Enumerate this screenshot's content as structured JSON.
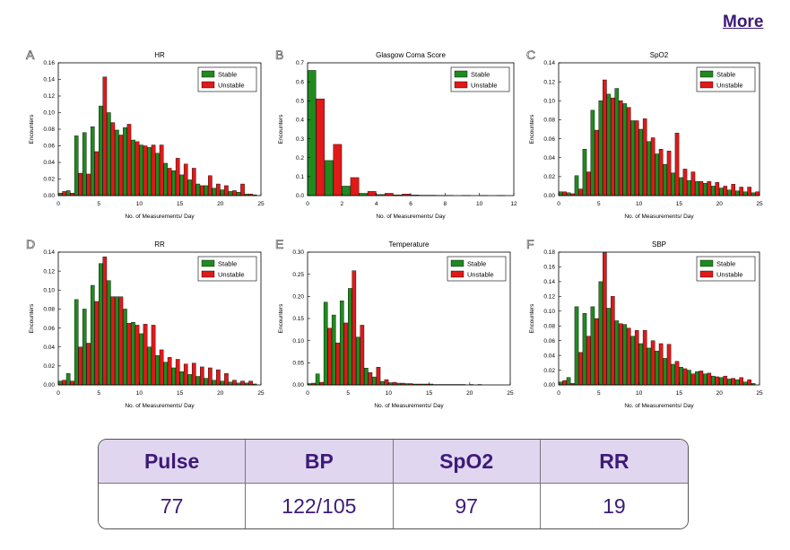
{
  "nav": {
    "more_label": "More"
  },
  "colors": {
    "stable": "#1f8a1f",
    "unstable": "#e01919",
    "accent": "#3d1a78",
    "header_bg": "#e1d6ef"
  },
  "legend": {
    "stable": "Stable",
    "unstable": "Unstable"
  },
  "chart_data": [
    {
      "type": "bar",
      "panel": "A",
      "title": "HR",
      "xlabel": "No. of Measurements/ Day",
      "ylabel": "Encounters",
      "xlim": [
        0,
        25
      ],
      "ylim": [
        0,
        0.16
      ],
      "xticks": [
        "0",
        "5",
        "10",
        "15",
        "20",
        "25"
      ],
      "yticks": [
        "0.00",
        "0.02",
        "0.04",
        "0.06",
        "0.08",
        "0.10",
        "0.12",
        "0.14",
        "0.16"
      ],
      "x": [
        0,
        1,
        2,
        3,
        4,
        5,
        6,
        7,
        8,
        9,
        10,
        11,
        12,
        13,
        14,
        15,
        16,
        17,
        18,
        19,
        20,
        21,
        22,
        23,
        24
      ],
      "series": [
        {
          "name": "Stable",
          "values": [
            0.003,
            0.006,
            0.072,
            0.076,
            0.083,
            0.108,
            0.1,
            0.079,
            0.082,
            0.067,
            0.061,
            0.058,
            0.051,
            0.039,
            0.03,
            0.025,
            0.019,
            0.014,
            0.012,
            0.009,
            0.007,
            0.005,
            0.004,
            0.002,
            0.001
          ]
        },
        {
          "name": "Unstable",
          "values": [
            0.005,
            0.003,
            0.027,
            0.026,
            0.053,
            0.143,
            0.088,
            0.073,
            0.086,
            0.065,
            0.06,
            0.061,
            0.061,
            0.033,
            0.045,
            0.038,
            0.033,
            0.012,
            0.024,
            0.014,
            0.012,
            0.006,
            0.014,
            0.002,
            0.0
          ]
        }
      ]
    },
    {
      "type": "bar",
      "panel": "B",
      "title": "Glasgow Coma Score",
      "xlabel": "No. of Measurements/ Day",
      "ylabel": "Encounters",
      "xlim": [
        0,
        12
      ],
      "ylim": [
        0,
        0.7
      ],
      "xticks": [
        "0",
        "2",
        "4",
        "6",
        "8",
        "10",
        "12"
      ],
      "yticks": [
        "0.0",
        "0.1",
        "0.2",
        "0.3",
        "0.4",
        "0.5",
        "0.6",
        "0.7"
      ],
      "x": [
        0,
        1,
        2,
        3,
        4,
        5,
        6,
        7,
        8,
        9,
        10,
        11
      ],
      "series": [
        {
          "name": "Stable",
          "values": [
            0.66,
            0.185,
            0.05,
            0.012,
            0.006,
            0.004,
            0.003,
            0.002,
            0.001,
            0.001,
            0.001,
            0.001
          ]
        },
        {
          "name": "Unstable",
          "values": [
            0.51,
            0.27,
            0.095,
            0.022,
            0.012,
            0.008,
            0.002,
            0.001,
            0.0,
            0.0,
            0.0,
            0.0
          ]
        }
      ]
    },
    {
      "type": "bar",
      "panel": "C",
      "title": "SpO2",
      "xlabel": "No. of Measurements/ Day",
      "ylabel": "Encounters",
      "xlim": [
        0,
        25
      ],
      "ylim": [
        0,
        0.14
      ],
      "xticks": [
        "0",
        "5",
        "10",
        "15",
        "20",
        "25"
      ],
      "yticks": [
        "0.00",
        "0.02",
        "0.04",
        "0.06",
        "0.08",
        "0.10",
        "0.12",
        "0.14"
      ],
      "x": [
        0,
        1,
        2,
        3,
        4,
        5,
        6,
        7,
        8,
        9,
        10,
        11,
        12,
        13,
        14,
        15,
        16,
        17,
        18,
        19,
        20,
        21,
        22,
        23,
        24
      ],
      "series": [
        {
          "name": "Stable",
          "values": [
            0.004,
            0.003,
            0.021,
            0.049,
            0.09,
            0.1,
            0.107,
            0.113,
            0.097,
            0.079,
            0.07,
            0.057,
            0.044,
            0.033,
            0.024,
            0.019,
            0.016,
            0.015,
            0.013,
            0.01,
            0.008,
            0.006,
            0.005,
            0.004,
            0.003
          ]
        },
        {
          "name": "Unstable",
          "values": [
            0.004,
            0.002,
            0.007,
            0.025,
            0.069,
            0.122,
            0.103,
            0.1,
            0.093,
            0.079,
            0.081,
            0.061,
            0.049,
            0.047,
            0.066,
            0.028,
            0.025,
            0.015,
            0.015,
            0.014,
            0.01,
            0.012,
            0.009,
            0.009,
            0.004
          ]
        }
      ]
    },
    {
      "type": "bar",
      "panel": "D",
      "title": "RR",
      "xlabel": "No. of Measurements/ Day",
      "ylabel": "Encounters",
      "xlim": [
        0,
        25
      ],
      "ylim": [
        0,
        0.14
      ],
      "xticks": [
        "0",
        "5",
        "10",
        "15",
        "20",
        "25"
      ],
      "yticks": [
        "0.00",
        "0.02",
        "0.04",
        "0.06",
        "0.08",
        "0.10",
        "0.12",
        "0.14"
      ],
      "x": [
        0,
        1,
        2,
        3,
        4,
        5,
        6,
        7,
        8,
        9,
        10,
        11,
        12,
        13,
        14,
        15,
        16,
        17,
        18,
        19,
        20,
        21,
        22,
        23,
        24
      ],
      "series": [
        {
          "name": "Stable",
          "values": [
            0.004,
            0.012,
            0.09,
            0.08,
            0.105,
            0.128,
            0.11,
            0.093,
            0.08,
            0.066,
            0.054,
            0.04,
            0.031,
            0.024,
            0.018,
            0.014,
            0.011,
            0.009,
            0.007,
            0.005,
            0.004,
            0.003,
            0.002,
            0.002,
            0.001
          ]
        },
        {
          "name": "Unstable",
          "values": [
            0.005,
            0.004,
            0.04,
            0.044,
            0.088,
            0.135,
            0.093,
            0.093,
            0.065,
            0.063,
            0.064,
            0.063,
            0.037,
            0.029,
            0.027,
            0.022,
            0.023,
            0.019,
            0.018,
            0.016,
            0.012,
            0.005,
            0.004,
            0.004,
            0.0
          ]
        }
      ]
    },
    {
      "type": "bar",
      "panel": "E",
      "title": "Temperature",
      "xlabel": "No. of Measurements/ Day",
      "ylabel": "Encounters",
      "xlim": [
        0,
        25
      ],
      "ylim": [
        0,
        0.3
      ],
      "xticks": [
        "0",
        "5",
        "10",
        "15",
        "20",
        "25"
      ],
      "yticks": [
        "0.00",
        "0.05",
        "0.10",
        "0.15",
        "0.20",
        "0.25",
        "0.30"
      ],
      "x": [
        0,
        1,
        2,
        3,
        4,
        5,
        6,
        7,
        8,
        9,
        10,
        11,
        12,
        13,
        14,
        15,
        16,
        17,
        18,
        19,
        20,
        21,
        22,
        23,
        24
      ],
      "series": [
        {
          "name": "Stable",
          "values": [
            0.003,
            0.025,
            0.187,
            0.158,
            0.19,
            0.218,
            0.108,
            0.038,
            0.018,
            0.008,
            0.005,
            0.004,
            0.003,
            0.002,
            0.002,
            0.002,
            0.001,
            0.001,
            0.001,
            0.001,
            0.001,
            0.001,
            0.0,
            0.0,
            0.0
          ]
        },
        {
          "name": "Unstable",
          "values": [
            0.004,
            0.006,
            0.128,
            0.095,
            0.14,
            0.258,
            0.135,
            0.028,
            0.04,
            0.012,
            0.006,
            0.004,
            0.003,
            0.002,
            0.002,
            0.001,
            0.001,
            0.001,
            0.001,
            0.0,
            0.0,
            0.0,
            0.0,
            0.0,
            0.0
          ]
        }
      ]
    },
    {
      "type": "bar",
      "panel": "F",
      "title": "SBP",
      "xlabel": "No. of Measurements/ Day",
      "ylabel": "Encounters",
      "xlim": [
        0,
        25
      ],
      "ylim": [
        0,
        0.18
      ],
      "xticks": [
        "0",
        "5",
        "10",
        "15",
        "20",
        "25"
      ],
      "yticks": [
        "0.00",
        "0.02",
        "0.04",
        "0.06",
        "0.08",
        "0.10",
        "0.12",
        "0.14",
        "0.16",
        "0.18"
      ],
      "x": [
        0,
        1,
        2,
        3,
        4,
        5,
        6,
        7,
        8,
        9,
        10,
        11,
        12,
        13,
        14,
        15,
        16,
        17,
        18,
        19,
        20,
        21,
        22,
        23,
        24
      ],
      "series": [
        {
          "name": "Stable",
          "values": [
            0.004,
            0.01,
            0.106,
            0.097,
            0.106,
            0.14,
            0.104,
            0.087,
            0.082,
            0.066,
            0.056,
            0.05,
            0.046,
            0.036,
            0.028,
            0.024,
            0.02,
            0.018,
            0.015,
            0.012,
            0.01,
            0.008,
            0.007,
            0.004,
            0.002
          ]
        },
        {
          "name": "Unstable",
          "values": [
            0.006,
            0.002,
            0.044,
            0.066,
            0.09,
            0.179,
            0.12,
            0.083,
            0.077,
            0.074,
            0.074,
            0.06,
            0.056,
            0.055,
            0.032,
            0.022,
            0.015,
            0.019,
            0.016,
            0.011,
            0.012,
            0.009,
            0.01,
            0.007,
            0.0
          ]
        }
      ]
    }
  ],
  "vitals": {
    "headers": [
      "Pulse",
      "BP",
      "SpO2",
      "RR"
    ],
    "values": [
      "77",
      "122/105",
      "97",
      "19"
    ]
  }
}
